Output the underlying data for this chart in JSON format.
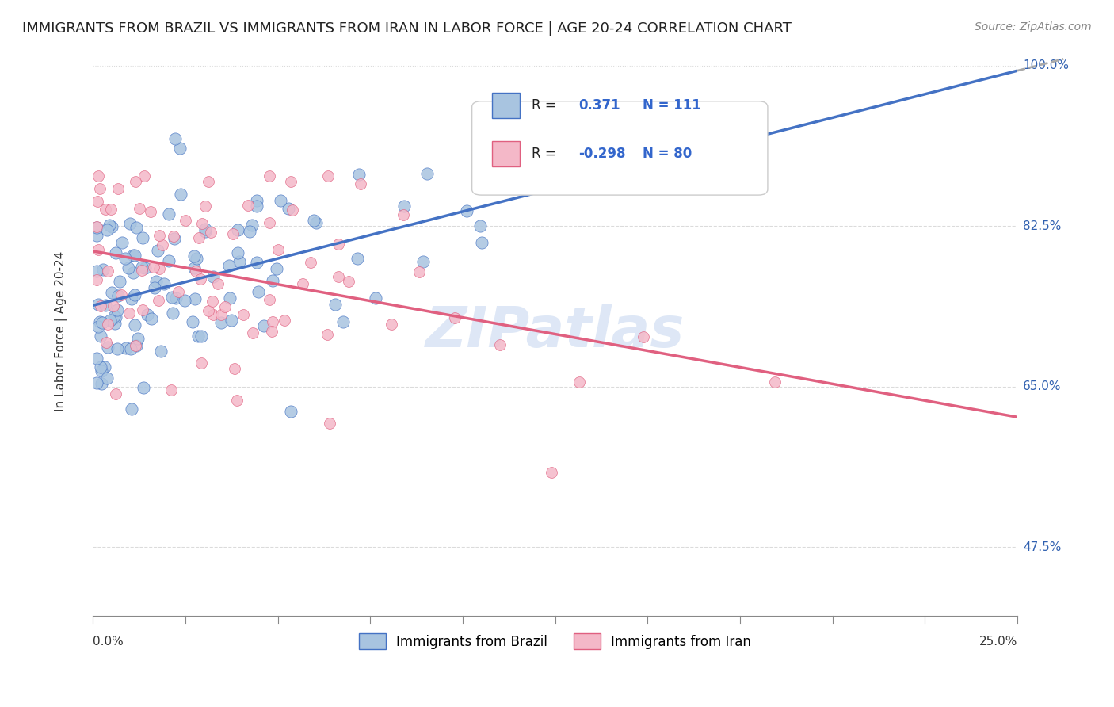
{
  "title": "IMMIGRANTS FROM BRAZIL VS IMMIGRANTS FROM IRAN IN LABOR FORCE | AGE 20-24 CORRELATION CHART",
  "source_text": "Source: ZipAtlas.com",
  "ylabel_label": "In Labor Force | Age 20-24",
  "legend_brazil": "Immigrants from Brazil",
  "legend_iran": "Immigrants from Iran",
  "brazil_R": "0.371",
  "brazil_N": "111",
  "iran_R": "-0.298",
  "iran_N": "80",
  "brazil_color": "#a8c4e0",
  "brazil_line_color": "#4472c4",
  "iran_color": "#f4b8c8",
  "iran_line_color": "#e06080",
  "watermark_color": "#c8d8f0",
  "background_color": "#ffffff",
  "xmin": 0.0,
  "xmax": 0.25,
  "ymin": 0.4,
  "ymax": 1.02
}
